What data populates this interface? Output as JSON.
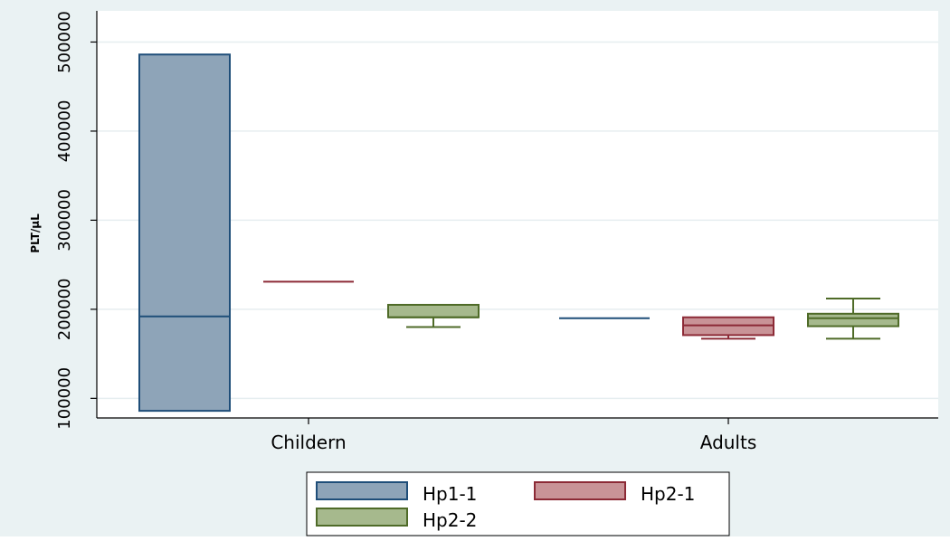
{
  "chart_data": {
    "type": "box",
    "title": "",
    "xlabel": "",
    "ylabel": "PLT/µL",
    "ylim": [
      78000,
      535000
    ],
    "yticks": [
      100000,
      200000,
      300000,
      400000,
      500000
    ],
    "yticklabels": [
      "100000",
      "200000",
      "300000",
      "400000",
      "500000"
    ],
    "categories": [
      "Childern",
      "Adults"
    ],
    "grid": true,
    "legend_position": "bottom",
    "series": [
      {
        "name": "Hp1-1",
        "fill": "#8ea4b8",
        "stroke": "#1f4e79",
        "boxes": [
          {
            "category": "Childern",
            "min": 86000,
            "q1": 86000,
            "median": 192000,
            "q3": 486000,
            "max": 486000
          },
          {
            "category": "Adults",
            "min": 190000,
            "q1": 190000,
            "median": 190000,
            "q3": 190000,
            "max": 190000
          }
        ]
      },
      {
        "name": "Hp2-1",
        "fill": "#c99397",
        "stroke": "#8c2a36",
        "boxes": [
          {
            "category": "Childern",
            "min": 231000,
            "q1": 231000,
            "median": 231000,
            "q3": 231000,
            "max": 231000
          },
          {
            "category": "Adults",
            "min": 167000,
            "q1": 171000,
            "median": 182000,
            "q3": 191000,
            "max": 191000
          }
        ]
      },
      {
        "name": "Hp2-2",
        "fill": "#a6b98d",
        "stroke": "#4f6b28",
        "boxes": [
          {
            "category": "Childern",
            "min": 180000,
            "q1": 191000,
            "median": 191000,
            "q3": 205000,
            "max": 205000
          },
          {
            "category": "Adults",
            "min": 167000,
            "q1": 181000,
            "median": 190000,
            "q3": 195000,
            "max": 212000
          }
        ]
      }
    ]
  }
}
